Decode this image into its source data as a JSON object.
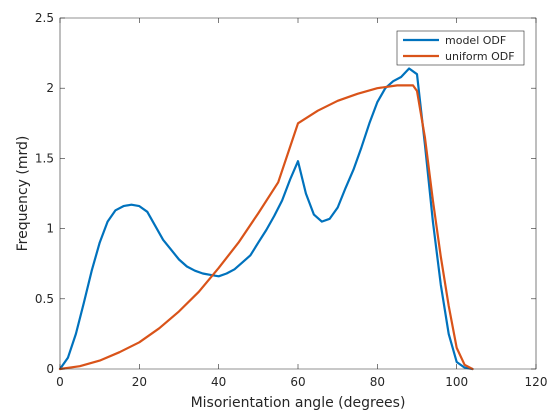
{
  "chart_data": {
    "type": "line",
    "title": "",
    "xlabel": "Misorientation angle (degrees)",
    "ylabel": "Frequency (mrd)",
    "xlim": [
      0,
      120
    ],
    "ylim": [
      0,
      2.5
    ],
    "xticks": [
      0,
      20,
      40,
      60,
      80,
      100,
      120
    ],
    "yticks": [
      0,
      0.5,
      1,
      1.5,
      2,
      2.5
    ],
    "xtick_labels": [
      "0",
      "20",
      "40",
      "60",
      "80",
      "100",
      "120"
    ],
    "ytick_labels": [
      "0",
      "0.5",
      "1",
      "1.5",
      "2",
      "2.5"
    ],
    "grid": false,
    "legend_position": "top-right",
    "series": [
      {
        "name": "model ODF",
        "color": "#0072BD",
        "x": [
          0,
          2,
          4,
          6,
          8,
          10,
          12,
          14,
          16,
          18,
          20,
          22,
          24,
          26,
          28,
          30,
          32,
          34,
          36,
          38,
          40,
          42,
          44,
          46,
          48,
          50,
          52,
          54,
          56,
          58,
          60,
          62,
          64,
          66,
          68,
          70,
          72,
          74,
          76,
          78,
          80,
          82,
          84,
          86,
          88,
          90,
          92,
          94,
          96,
          98,
          100,
          102,
          104
        ],
        "y": [
          0,
          0.08,
          0.25,
          0.47,
          0.7,
          0.9,
          1.05,
          1.13,
          1.16,
          1.17,
          1.16,
          1.12,
          1.02,
          0.92,
          0.85,
          0.78,
          0.73,
          0.7,
          0.68,
          0.67,
          0.66,
          0.68,
          0.71,
          0.76,
          0.81,
          0.9,
          0.99,
          1.09,
          1.2,
          1.35,
          1.48,
          1.25,
          1.1,
          1.05,
          1.07,
          1.15,
          1.29,
          1.42,
          1.58,
          1.75,
          1.9,
          2.0,
          2.05,
          2.08,
          2.14,
          2.1,
          1.6,
          1.05,
          0.6,
          0.25,
          0.05,
          0.01,
          0
        ]
      },
      {
        "name": "uniform ODF",
        "color": "#D95319",
        "x": [
          0,
          5,
          10,
          15,
          20,
          25,
          30,
          35,
          40,
          45,
          50,
          55,
          60,
          65,
          70,
          75,
          80,
          85,
          89,
          90,
          92,
          94,
          96,
          98,
          100,
          102,
          104
        ],
        "y": [
          0,
          0.02,
          0.06,
          0.12,
          0.19,
          0.29,
          0.41,
          0.55,
          0.72,
          0.9,
          1.11,
          1.33,
          1.75,
          1.84,
          1.91,
          1.96,
          2.0,
          2.02,
          2.02,
          1.98,
          1.65,
          1.2,
          0.8,
          0.45,
          0.15,
          0.03,
          0
        ]
      }
    ]
  }
}
